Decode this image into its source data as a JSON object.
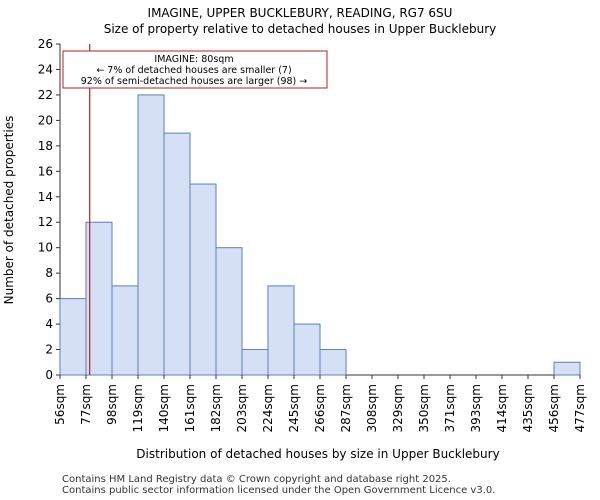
{
  "chart_data": {
    "type": "bar",
    "title_line1": "IMAGINE, UPPER BUCKLEBURY, READING, RG7 6SU",
    "title_line2": "Size of property relative to detached houses in Upper Bucklebury",
    "xlabel": "Distribution of detached houses by size in Upper Bucklebury",
    "ylabel": "Number of detached properties",
    "x_tick_labels": [
      "56sqm",
      "77sqm",
      "98sqm",
      "119sqm",
      "140sqm",
      "161sqm",
      "182sqm",
      "203sqm",
      "224sqm",
      "245sqm",
      "266sqm",
      "287sqm",
      "308sqm",
      "329sqm",
      "350sqm",
      "371sqm",
      "393sqm",
      "414sqm",
      "435sqm",
      "456sqm",
      "477sqm"
    ],
    "bin_edges_sqm": [
      56,
      77,
      98,
      119,
      140,
      161,
      182,
      203,
      224,
      245,
      266,
      287,
      308,
      329,
      350,
      371,
      393,
      414,
      435,
      456,
      477
    ],
    "values": [
      6,
      12,
      7,
      22,
      19,
      15,
      10,
      2,
      7,
      4,
      2,
      0,
      0,
      0,
      0,
      0,
      0,
      0,
      0,
      1
    ],
    "ylim": [
      0,
      26
    ],
    "y_ticks": [
      0,
      2,
      4,
      6,
      8,
      10,
      12,
      14,
      16,
      18,
      20,
      22,
      24,
      26
    ],
    "marker_value_sqm": 80,
    "annotation": {
      "line1": "IMAGINE: 80sqm",
      "line2": "← 7% of detached houses are smaller (7)",
      "line3": "92% of semi-detached houses are larger (98) →"
    },
    "colors": {
      "bar_fill": "#d6e0f5",
      "bar_edge": "#5a7fbf",
      "marker": "#b22222"
    }
  },
  "footer": {
    "line1": "Contains HM Land Registry data © Crown copyright and database right 2025.",
    "line2": "Contains public sector information licensed under the Open Government Licence v3.0."
  }
}
